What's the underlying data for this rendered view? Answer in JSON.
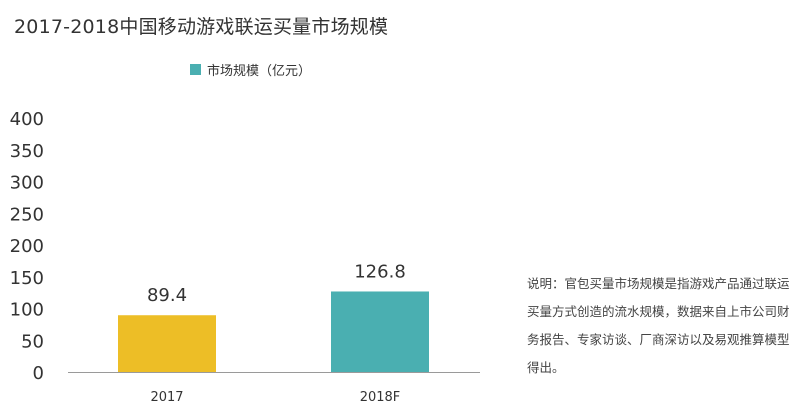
{
  "title": "2017-2018中国移动游戏联运买量市场规模",
  "note": "说明：官包买量市场规模是指游戏产品通过联运买量方式创造的流水规模，数据来自上市公司财务报告、专家访谈、厂商深访以及易观推算模型得出。",
  "chart_data": {
    "type": "bar",
    "title": "2017-2018中国移动游戏联运买量市场规模",
    "categories": [
      "2017",
      "2018F"
    ],
    "series": [
      {
        "name": "市场规模（亿元）",
        "values": [
          89.4,
          126.8
        ],
        "value_labels": [
          "89.4",
          "126.8"
        ]
      }
    ],
    "bar_colors": [
      "#EDBE26",
      "#4AAFB1"
    ],
    "legend_color": "#4AAFB1",
    "y_ticks": [
      "0",
      "50",
      "100",
      "150",
      "200",
      "250",
      "300",
      "350",
      "400"
    ],
    "ylim": [
      0,
      400
    ],
    "grid": false,
    "legend_position": "top-center"
  }
}
